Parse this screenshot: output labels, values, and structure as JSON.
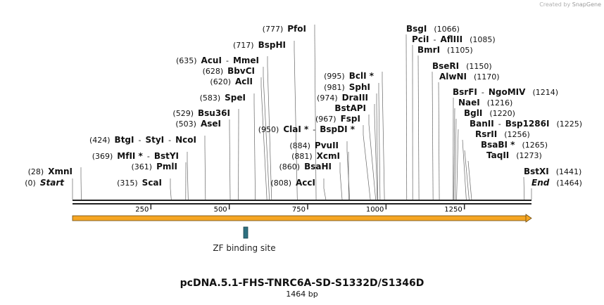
{
  "credit": {
    "prefix": "Created by",
    "brand": "SnapGene"
  },
  "title": "pcDNA.5.1-FHS-TNRC6A-SD-S1332D/S1346D",
  "length_label": "1464 bp",
  "sequence_length": 1464,
  "ticks": [
    "250",
    "500",
    "750",
    "1000",
    "1250"
  ],
  "feature": {
    "label": "ZF binding site",
    "start": 545,
    "end": 556,
    "color": "#2e7080"
  },
  "arrow_color": "#f5a623",
  "sites": [
    {
      "pos": "(0)",
      "names": [
        "Start"
      ],
      "italic": true,
      "at": 0
    },
    {
      "pos": "(28)",
      "names": [
        "XmnI"
      ],
      "at": 28
    },
    {
      "pos": "(315)",
      "names": [
        "ScaI"
      ],
      "at": 315
    },
    {
      "pos": "(361)",
      "names": [
        "PmlI"
      ],
      "at": 361
    },
    {
      "pos": "(369)",
      "names": [
        "MfII *",
        "BstYI"
      ],
      "at": 369
    },
    {
      "pos": "(424)",
      "names": [
        "BtgI",
        "StyI",
        "NcoI"
      ],
      "at": 424
    },
    {
      "pos": "(503)",
      "names": [
        "AseI"
      ],
      "at": 503
    },
    {
      "pos": "(529)",
      "names": [
        "Bsu36I"
      ],
      "at": 529
    },
    {
      "pos": "(583)",
      "names": [
        "SpeI"
      ],
      "at": 583
    },
    {
      "pos": "(620)",
      "names": [
        "AclI"
      ],
      "at": 620
    },
    {
      "pos": "(628)",
      "names": [
        "BbvCI"
      ],
      "at": 628
    },
    {
      "pos": "(635)",
      "names": [
        "AcuI",
        "MmeI"
      ],
      "at": 635
    },
    {
      "pos": "(717)",
      "names": [
        "BspHI"
      ],
      "at": 717
    },
    {
      "pos": "(777)",
      "names": [
        "PfoI"
      ],
      "at": 777
    },
    {
      "pos": "(808)",
      "names": [
        "AccI"
      ],
      "at": 808
    },
    {
      "pos": "(860)",
      "names": [
        "BsaHI"
      ],
      "at": 860
    },
    {
      "pos": "(881)",
      "names": [
        "XcmI"
      ],
      "at": 881
    },
    {
      "pos": "(884)",
      "names": [
        "PvuII"
      ],
      "at": 884
    },
    {
      "pos": "(950)",
      "names": [
        "ClaI *",
        "BspDI *"
      ],
      "at": 950
    },
    {
      "pos": "(967)",
      "names": [
        "FspI"
      ],
      "at": 967
    },
    {
      "pos": "",
      "names": [
        "BstAPI"
      ],
      "at": 972
    },
    {
      "pos": "(974)",
      "names": [
        "DraIII"
      ],
      "at": 974
    },
    {
      "pos": "(981)",
      "names": [
        "SphI"
      ],
      "at": 981
    },
    {
      "pos": "(995)",
      "names": [
        "BclI *"
      ],
      "at": 995
    },
    {
      "pos": "(1066)",
      "names": [
        "BsgI"
      ],
      "at": 1066
    },
    {
      "pos": "(1085)",
      "names": [
        "PciI",
        "AflIII"
      ],
      "at": 1085
    },
    {
      "pos": "(1105)",
      "names": [
        "BmrI"
      ],
      "at": 1105
    },
    {
      "pos": "(1150)",
      "names": [
        "BseRI"
      ],
      "at": 1150
    },
    {
      "pos": "(1170)",
      "names": [
        "AlwNI"
      ],
      "at": 1170
    },
    {
      "pos": "(1214)",
      "names": [
        "BsrFI",
        "NgoMIV"
      ],
      "at": 1214
    },
    {
      "pos": "(1216)",
      "names": [
        "NaeI"
      ],
      "at": 1216
    },
    {
      "pos": "(1220)",
      "names": [
        "BglI"
      ],
      "at": 1220
    },
    {
      "pos": "(1225)",
      "names": [
        "BanII",
        "Bsp1286I"
      ],
      "at": 1225
    },
    {
      "pos": "(1256)",
      "names": [
        "RsrII"
      ],
      "at": 1256
    },
    {
      "pos": "(1265)",
      "names": [
        "BsaBI *"
      ],
      "at": 1265
    },
    {
      "pos": "(1273)",
      "names": [
        "TaqII"
      ],
      "at": 1273
    },
    {
      "pos": "(1441)",
      "names": [
        "BstXI"
      ],
      "at": 1441
    },
    {
      "pos": "(1464)",
      "names": [
        "End"
      ],
      "italic": true,
      "at": 1464
    }
  ]
}
